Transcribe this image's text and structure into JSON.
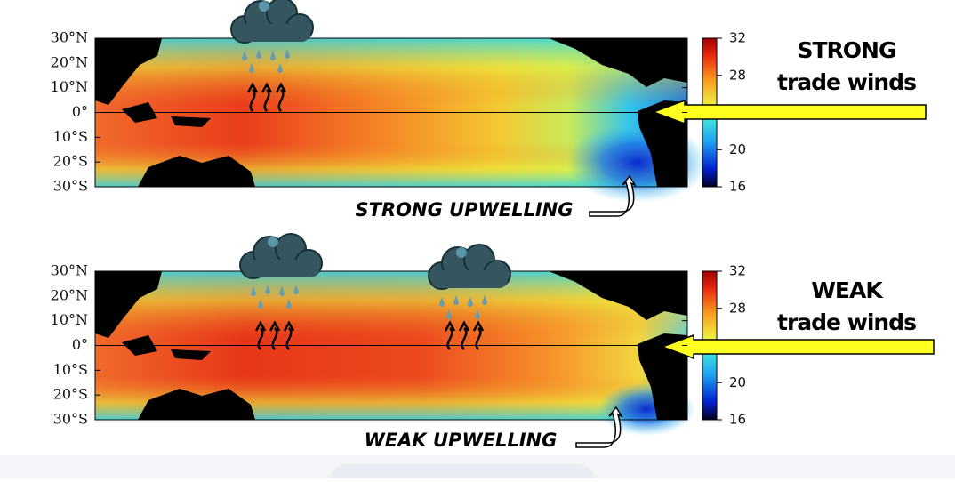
{
  "panels": [
    {
      "lat_labels": [
        "30°N",
        "20°N",
        "10°N",
        "0°",
        "10°S",
        "20°S",
        "30°S"
      ],
      "colorbar": {
        "ticks": [
          32,
          28,
          20,
          16
        ]
      },
      "winds": {
        "strength": "STRONG",
        "label": "trade winds"
      },
      "upwelling": "STRONG UPWELLING"
    },
    {
      "lat_labels": [
        "30°N",
        "20°N",
        "10°N",
        "0°",
        "10°S",
        "20°S",
        "30°S"
      ],
      "colorbar": {
        "ticks": [
          32,
          28,
          20,
          16
        ]
      },
      "winds": {
        "strength": "WEAK",
        "label": "trade winds"
      },
      "upwelling": "WEAK UPWELLING"
    }
  ]
}
